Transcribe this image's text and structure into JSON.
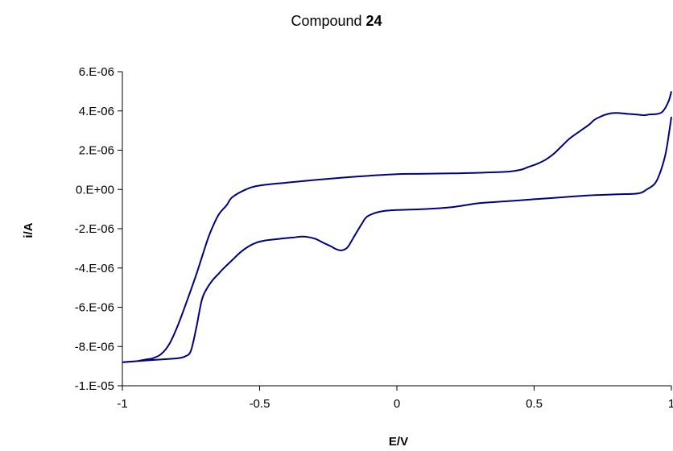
{
  "chart_data": {
    "type": "line",
    "title_prefix": "Compound ",
    "title_bold": "24",
    "xlabel": "E/V",
    "ylabel": "i/A",
    "xlim": [
      -1,
      1
    ],
    "ylim": [
      -1e-05,
      6e-06
    ],
    "x_ticks": [
      -1,
      -0.5,
      0,
      0.5,
      1
    ],
    "x_tick_labels": [
      "-1",
      "-0.5",
      "0",
      "0.5",
      "1"
    ],
    "y_ticks": [
      6e-06,
      4e-06,
      2e-06,
      0,
      -2e-06,
      -4e-06,
      -6e-06,
      -8e-06,
      -1e-05
    ],
    "y_tick_labels": [
      "6.E-06",
      "4.E-06",
      "2.E-06",
      "0.E+00",
      "-2.E-06",
      "-4.E-06",
      "-6.E-06",
      "-8.E-06",
      "-1.E-05"
    ],
    "grid": false,
    "legend": "none",
    "line_color": "#000080",
    "series": [
      {
        "values_x": [
          1.0,
          0.99,
          0.97,
          0.95,
          0.92,
          0.9,
          0.87,
          0.84,
          0.8,
          0.77,
          0.74,
          0.72,
          0.7,
          0.67,
          0.63,
          0.6,
          0.57,
          0.54,
          0.51,
          0.48,
          0.45,
          0.4,
          0.3,
          0.2,
          0.1,
          0.0,
          -0.1,
          -0.2,
          -0.3,
          -0.4,
          -0.5,
          -0.55,
          -0.6,
          -0.62,
          -0.65,
          -0.68,
          -0.7,
          -0.73,
          -0.76,
          -0.8,
          -0.83,
          -0.86,
          -0.89,
          -0.91,
          -0.93,
          -0.95,
          -1.0,
          -0.95,
          -0.9,
          -0.85,
          -0.8,
          -0.77,
          -0.75,
          -0.73,
          -0.71,
          -0.69,
          -0.67,
          -0.65,
          -0.63,
          -0.6,
          -0.57,
          -0.54,
          -0.51,
          -0.48,
          -0.45,
          -0.42,
          -0.38,
          -0.34,
          -0.3,
          -0.27,
          -0.24,
          -0.22,
          -0.2,
          -0.18,
          -0.16,
          -0.13,
          -0.11,
          -0.08,
          -0.05,
          0.0,
          0.1,
          0.2,
          0.3,
          0.4,
          0.5,
          0.6,
          0.7,
          0.8,
          0.88,
          0.91,
          0.94,
          0.96,
          0.98,
          1.0
        ],
        "values_y": [
          5e-06,
          4.5e-06,
          4e-06,
          3.85e-06,
          3.82e-06,
          3.78e-06,
          3.82e-06,
          3.85e-06,
          3.9e-06,
          3.85e-06,
          3.7e-06,
          3.55e-06,
          3.3e-06,
          3e-06,
          2.6e-06,
          2.2e-06,
          1.8e-06,
          1.5e-06,
          1.3e-06,
          1.15e-06,
          1e-06,
          9e-07,
          8.5e-07,
          8.2e-07,
          8e-07,
          7.8e-07,
          7e-07,
          6e-07,
          4.8e-07,
          3.5e-07,
          2e-07,
          0.0,
          -4e-07,
          -8e-07,
          -1.3e-06,
          -2.2e-06,
          -3e-06,
          -4.3e-06,
          -5.5e-06,
          -7e-06,
          -7.9e-06,
          -8.4e-06,
          -8.6e-06,
          -8.65e-06,
          -8.7e-06,
          -8.75e-06,
          -8.8e-06,
          -8.75e-06,
          -8.7e-06,
          -8.65e-06,
          -8.6e-06,
          -8.5e-06,
          -8.2e-06,
          -7e-06,
          -5.6e-06,
          -5e-06,
          -4.6e-06,
          -4.3e-06,
          -4e-06,
          -3.6e-06,
          -3.2e-06,
          -2.9e-06,
          -2.7e-06,
          -2.6e-06,
          -2.55e-06,
          -2.5e-06,
          -2.45e-06,
          -2.4e-06,
          -2.5e-06,
          -2.7e-06,
          -2.9e-06,
          -3.05e-06,
          -3.1e-06,
          -2.95e-06,
          -2.5e-06,
          -1.8e-06,
          -1.4e-06,
          -1.2e-06,
          -1.1e-06,
          -1.05e-06,
          -1e-06,
          -9e-07,
          -7e-07,
          -6e-07,
          -5e-07,
          -4e-07,
          -3e-07,
          -2.5e-07,
          -2e-07,
          0.0,
          3e-07,
          9e-07,
          1.9e-06,
          3.7e-06
        ]
      }
    ]
  }
}
